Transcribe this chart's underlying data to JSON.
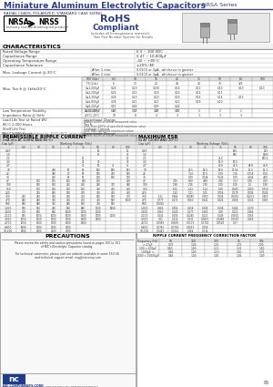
{
  "title": "Miniature Aluminum Electrolytic Capacitors",
  "series": "NRSA Series",
  "bg_color": "#ffffff",
  "header_color": "#2c3e8c",
  "rohs_color": "#2c3e8c",
  "table_border": "#aaaaaa",
  "section_bg": "#e0e0e0"
}
